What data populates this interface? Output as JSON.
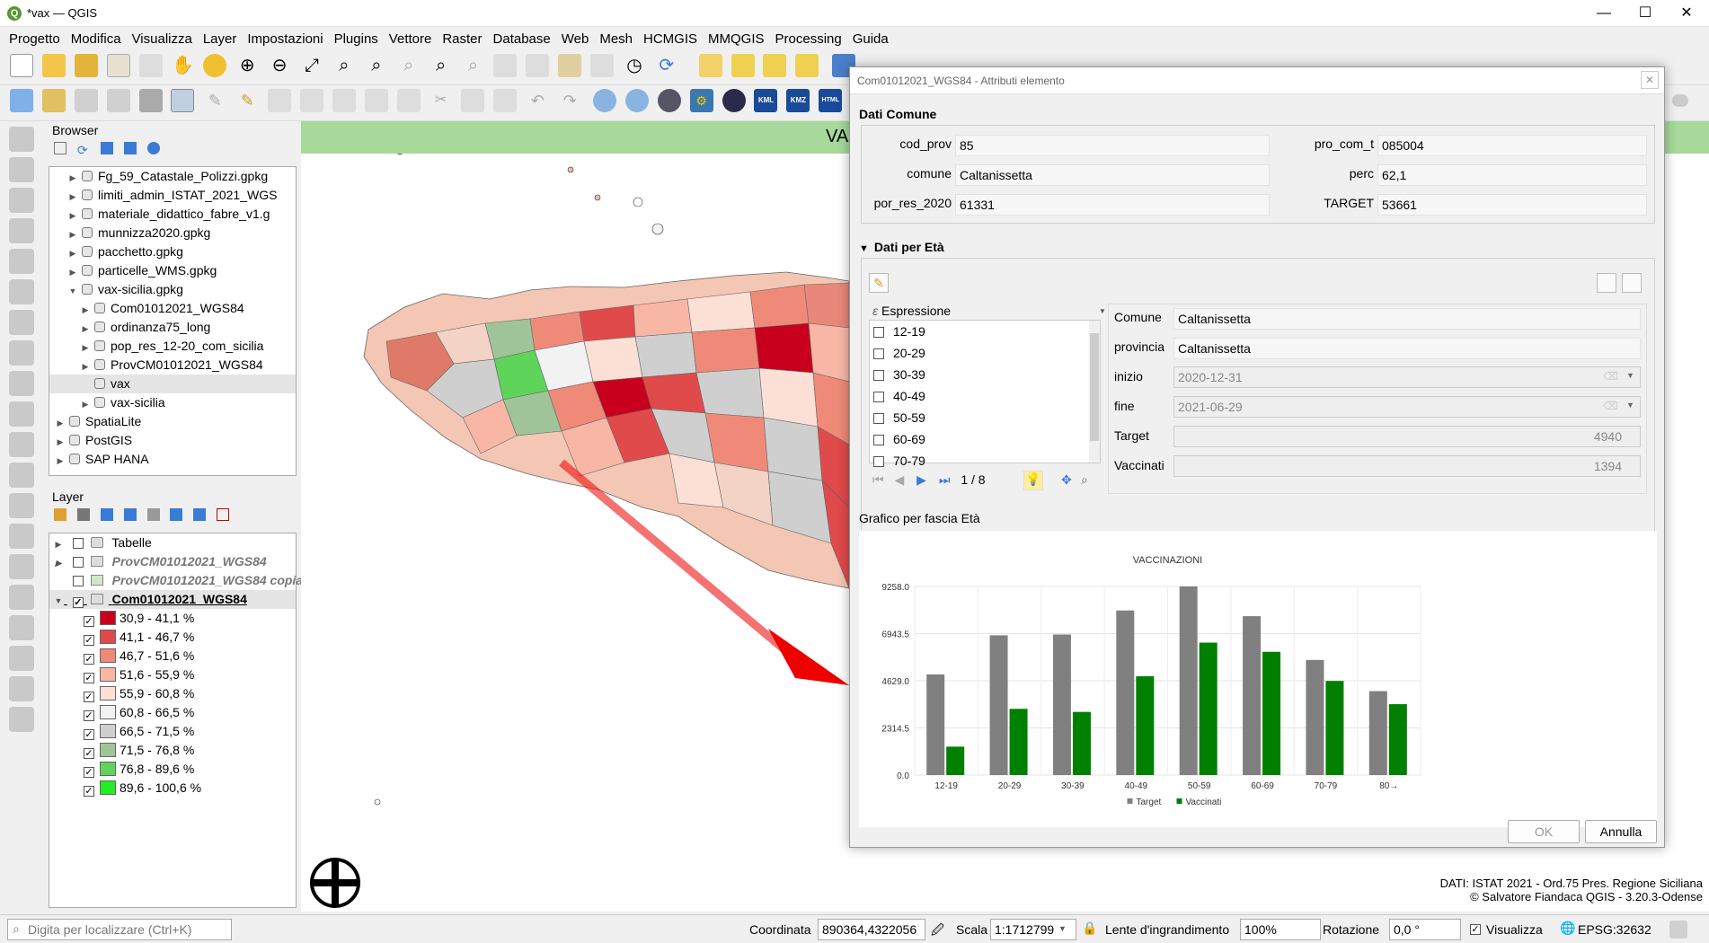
{
  "window": {
    "title": "*vax — QGIS",
    "app_icon": "Q",
    "minimize": "—",
    "maximize": "☐",
    "close": "✕"
  },
  "menu": [
    "Progetto",
    "Modifica",
    "Visualizza",
    "Layer",
    "Impostazioni",
    "Plugins",
    "Vettore",
    "Raster",
    "Database",
    "Web",
    "Mesh",
    "HCMGIS",
    "MMQGIS",
    "Processing",
    "Guida"
  ],
  "toolbar_badges": {
    "kml": "KML",
    "kmz": "KMZ",
    "html": "HTML"
  },
  "browser": {
    "title": "Browser",
    "items": [
      {
        "label": "Fg_59_Catastale_Polizzi.gpkg",
        "indent": 1
      },
      {
        "label": "limiti_admin_ISTAT_2021_WGS",
        "indent": 1
      },
      {
        "label": "materiale_didattico_fabre_v1.g",
        "indent": 1
      },
      {
        "label": "munnizza2020.gpkg",
        "indent": 1
      },
      {
        "label": "pacchetto.gpkg",
        "indent": 1
      },
      {
        "label": "particelle_WMS.gpkg",
        "indent": 1
      },
      {
        "label": "vax-sicilia.gpkg",
        "indent": 1
      },
      {
        "label": "Com01012021_WGS84",
        "indent": 2
      },
      {
        "label": "ordinanza75_long",
        "indent": 2
      },
      {
        "label": "pop_res_12-20_com_sicilia",
        "indent": 2
      },
      {
        "label": "ProvCM01012021_WGS84",
        "indent": 2
      },
      {
        "label": "vax",
        "indent": 2
      },
      {
        "label": "vax-sicilia",
        "indent": 2
      },
      {
        "label": "SpatiaLite",
        "indent": 0
      },
      {
        "label": "PostGIS",
        "indent": 0
      },
      {
        "label": "SAP HANA",
        "indent": 0
      }
    ]
  },
  "layers": {
    "title": "Layer",
    "items": [
      {
        "label": "Tabelle"
      },
      {
        "label": "ProvCM01012021_WGS84"
      },
      {
        "label": "ProvCM01012021_WGS84 copia"
      },
      {
        "label": "Com01012021_WGS84"
      }
    ],
    "legend": [
      {
        "label": "30,9 - 41,1 %",
        "color": "#c8001e"
      },
      {
        "label": "41,1 - 46,7 %",
        "color": "#e04a4a"
      },
      {
        "label": "46,7 - 51,6 %",
        "color": "#f08a78"
      },
      {
        "label": "51,6 - 55,9 %",
        "color": "#f8b7a5"
      },
      {
        "label": "55,9 - 60,8 %",
        "color": "#fce0d6"
      },
      {
        "label": "60,8 - 66,5 %",
        "color": "#f2f2f2"
      },
      {
        "label": "66,5 - 71,5 %",
        "color": "#cfcfcf"
      },
      {
        "label": "71,5 - 76,8 %",
        "color": "#9fc49a"
      },
      {
        "label": "76,8 - 89,6 %",
        "color": "#5fd45a"
      },
      {
        "label": "89,6 - 100,6 %",
        "color": "#22ee22"
      }
    ]
  },
  "map": {
    "banner_text": "VA",
    "credit_line1": "DATI: ISTAT 2021 - Ord.75 Pres. Regione Siciliana",
    "credit_line2": "© Salvatore Fiandaca QGIS - 3.20.3-Odense"
  },
  "dialog": {
    "title": "Com01012021_WGS84 - Attributi elemento",
    "group1_title": "Dati Comune",
    "fields": {
      "cod_prov_label": "cod_prov",
      "cod_prov": "85",
      "pro_com_t_label": "pro_com_t",
      "pro_com_t": "085004",
      "comune_label": "comune",
      "comune": "Caltanissetta",
      "perc_label": "perc",
      "perc": "62,1",
      "por_res_label": "por_res_2020",
      "por_res": "61331",
      "target_label": "TARGET",
      "target": "53661"
    },
    "group2_title": "Dati per Età",
    "expr_label": "Espressione",
    "age_list": [
      "12-19",
      "20-29",
      "30-39",
      "40-49",
      "50-59",
      "60-69",
      "70-79"
    ],
    "nav_counter": "1 / 8",
    "detail": {
      "comune_label": "Comune",
      "comune": "Caltanissetta",
      "provincia_label": "provincia",
      "provincia": "Caltanissetta",
      "inizio_label": "inizio",
      "inizio": "2020-12-31",
      "fine_label": "fine",
      "fine": "2021-06-29",
      "target_label": "Target",
      "target": "4940",
      "vaccinati_label": "Vaccinati",
      "vaccinati": "1394"
    },
    "chart_section_title": "Grafico per fascia Età",
    "ok": "OK",
    "cancel": "Annulla"
  },
  "chart_data": {
    "type": "bar",
    "title": "VACCINAZIONI",
    "categories": [
      "12-19",
      "20-29",
      "30-39",
      "40-49",
      "50-59",
      "60-69",
      "70-79",
      "80→"
    ],
    "series": [
      {
        "name": "Target",
        "color": "#808080",
        "values": [
          4940,
          6860,
          6900,
          8080,
          9258,
          7800,
          5650,
          4120
        ]
      },
      {
        "name": "Vaccinati",
        "color": "#008000",
        "values": [
          1394,
          3250,
          3100,
          4850,
          6500,
          6050,
          4620,
          3480
        ]
      }
    ],
    "yticks": [
      "0.0",
      "2314.5",
      "4629.0",
      "6943.5",
      "9258.0"
    ],
    "ylim": [
      0,
      9258
    ],
    "grid": true,
    "legend_position": "bottom"
  },
  "status": {
    "search_placeholder": "Digita per localizzare (Ctrl+K)",
    "coord_label": "Coordinata",
    "coord": "890364,4322056",
    "scale_label": "Scala",
    "scale": "1:1712799",
    "magnifier_label": "Lente d'ingrandimento",
    "magnifier": "100%",
    "rotation_label": "Rotazione",
    "rotation": "0,0 °",
    "render_label": "Visualizza",
    "crs": "EPSG:32632"
  }
}
